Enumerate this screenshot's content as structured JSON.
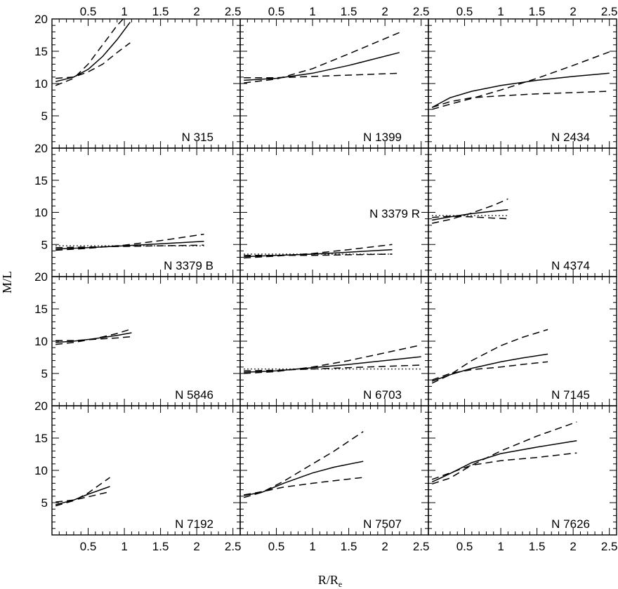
{
  "chart_data": {
    "type": "line",
    "title": "",
    "xlabel": "R/R",
    "xlabel_sub": "e",
    "ylabel": "M/L",
    "xlim": [
      0,
      2.6
    ],
    "ylim": [
      0,
      20
    ],
    "x_ticks": [
      0.5,
      1,
      1.5,
      2,
      2.5
    ],
    "x_tick_labels": [
      "0.5",
      "1",
      "1.5",
      "2",
      "2.5"
    ],
    "y_ticks": [
      5,
      10,
      15,
      20
    ],
    "y_tick_labels": [
      "5",
      "10",
      "15",
      "20"
    ],
    "grid": false,
    "legend": "none",
    "panels": [
      {
        "label": "N 315",
        "series": [
          {
            "style": "solid",
            "x": [
              0.05,
              0.3,
              0.5,
              0.7,
              0.9,
              1.08
            ],
            "y": [
              10.3,
              11.0,
              12.2,
              14.2,
              16.8,
              19.5
            ]
          },
          {
            "style": "dashed",
            "x": [
              0.05,
              0.3,
              0.5,
              0.7,
              0.9,
              1.0
            ],
            "y": [
              9.7,
              10.8,
              13.0,
              16.0,
              19.0,
              20.2
            ]
          },
          {
            "style": "dashed",
            "x": [
              0.05,
              0.3,
              0.5,
              0.7,
              0.9,
              1.08
            ],
            "y": [
              10.8,
              11.0,
              11.8,
              13.0,
              14.8,
              16.3
            ]
          }
        ]
      },
      {
        "label": "N 1399",
        "series": [
          {
            "style": "solid",
            "x": [
              0.05,
              0.5,
              1.0,
              1.5,
              2.2
            ],
            "y": [
              10.5,
              10.8,
              11.6,
              12.8,
              14.8
            ]
          },
          {
            "style": "dashed",
            "x": [
              0.05,
              0.5,
              1.0,
              1.5,
              2.2
            ],
            "y": [
              10.1,
              10.7,
              12.3,
              14.6,
              17.9
            ]
          },
          {
            "style": "dashed",
            "x": [
              0.05,
              0.5,
              1.0,
              1.5,
              2.2
            ],
            "y": [
              10.9,
              10.9,
              11.1,
              11.3,
              11.6
            ]
          }
        ]
      },
      {
        "label": "N 2434",
        "series": [
          {
            "style": "solid",
            "x": [
              0.05,
              0.3,
              0.6,
              1.0,
              1.5,
              2.0,
              2.5
            ],
            "y": [
              6.3,
              7.8,
              8.8,
              9.7,
              10.5,
              11.1,
              11.6
            ]
          },
          {
            "style": "dashed",
            "x": [
              0.05,
              0.3,
              0.6,
              1.0,
              1.5,
              2.0,
              2.5
            ],
            "y": [
              6.0,
              6.8,
              7.7,
              9.0,
              10.8,
              12.8,
              14.9
            ]
          },
          {
            "style": "dashed",
            "x": [
              0.05,
              0.3,
              0.6,
              1.0,
              1.5,
              2.0,
              2.5
            ],
            "y": [
              6.3,
              7.2,
              7.8,
              8.1,
              8.4,
              8.6,
              8.8
            ]
          }
        ]
      },
      {
        "label": "N 3379 B",
        "series": [
          {
            "style": "solid",
            "x": [
              0.05,
              0.5,
              1.0,
              1.5,
              2.1
            ],
            "y": [
              4.3,
              4.5,
              4.8,
              5.1,
              5.5
            ]
          },
          {
            "style": "dashed",
            "x": [
              0.05,
              0.5,
              1.0,
              1.5,
              2.1
            ],
            "y": [
              4.1,
              4.4,
              4.9,
              5.6,
              6.6
            ]
          },
          {
            "style": "dashed",
            "x": [
              0.05,
              0.5,
              1.0,
              1.5,
              2.1
            ],
            "y": [
              4.5,
              4.6,
              4.7,
              4.8,
              4.9
            ]
          },
          {
            "style": "dotted",
            "x": [
              0.05,
              2.1
            ],
            "y": [
              4.8,
              4.8
            ]
          }
        ]
      },
      {
        "label": "N 3379 R",
        "series": [
          {
            "style": "solid",
            "x": [
              0.05,
              0.5,
              1.0,
              1.5,
              2.1
            ],
            "y": [
              3.1,
              3.3,
              3.5,
              3.8,
              4.2
            ]
          },
          {
            "style": "dashed",
            "x": [
              0.05,
              0.5,
              1.0,
              1.5,
              2.1
            ],
            "y": [
              2.9,
              3.2,
              3.6,
              4.2,
              5.0
            ]
          },
          {
            "style": "dashed",
            "x": [
              0.05,
              0.5,
              1.0,
              1.5,
              2.1
            ],
            "y": [
              3.3,
              3.3,
              3.3,
              3.4,
              3.5
            ]
          },
          {
            "style": "dotted",
            "x": [
              0.05,
              2.1
            ],
            "y": [
              3.5,
              3.5
            ]
          }
        ]
      },
      {
        "label": "N 4374",
        "series": [
          {
            "style": "solid",
            "x": [
              0.05,
              0.3,
              0.6,
              0.9,
              1.1
            ],
            "y": [
              8.8,
              9.3,
              9.8,
              10.2,
              10.4
            ]
          },
          {
            "style": "dashed",
            "x": [
              0.05,
              0.3,
              0.6,
              0.9,
              1.1
            ],
            "y": [
              8.3,
              8.9,
              9.9,
              11.1,
              12.1
            ]
          },
          {
            "style": "dashed",
            "x": [
              0.05,
              0.3,
              0.6,
              0.9,
              1.1
            ],
            "y": [
              9.2,
              9.4,
              9.3,
              9.1,
              9.0
            ]
          },
          {
            "style": "dotted",
            "x": [
              0.05,
              1.1
            ],
            "y": [
              9.5,
              9.5
            ]
          }
        ]
      },
      {
        "label": "N 5846",
        "series": [
          {
            "style": "solid",
            "x": [
              0.05,
              0.3,
              0.6,
              0.9,
              1.1
            ],
            "y": [
              9.8,
              10.0,
              10.4,
              10.9,
              11.3
            ]
          },
          {
            "style": "dashed",
            "x": [
              0.05,
              0.3,
              0.6,
              0.9,
              1.1
            ],
            "y": [
              9.5,
              9.8,
              10.4,
              11.2,
              11.9
            ]
          },
          {
            "style": "dashed",
            "x": [
              0.05,
              0.3,
              0.6,
              0.9,
              1.1
            ],
            "y": [
              10.1,
              10.1,
              10.3,
              10.5,
              10.7
            ]
          }
        ]
      },
      {
        "label": "N 6703",
        "series": [
          {
            "style": "solid",
            "x": [
              0.05,
              0.5,
              1.0,
              1.5,
              2.0,
              2.5
            ],
            "y": [
              5.2,
              5.4,
              5.9,
              6.4,
              7.0,
              7.6
            ]
          },
          {
            "style": "dashed",
            "x": [
              0.05,
              0.5,
              1.0,
              1.5,
              2.0,
              2.5
            ],
            "y": [
              5.0,
              5.3,
              6.0,
              7.0,
              8.2,
              9.4
            ]
          },
          {
            "style": "dashed",
            "x": [
              0.05,
              0.5,
              1.0,
              1.5,
              2.0,
              2.5
            ],
            "y": [
              5.4,
              5.5,
              5.7,
              5.9,
              6.1,
              6.3
            ]
          },
          {
            "style": "dotted",
            "x": [
              0.05,
              2.5
            ],
            "y": [
              5.7,
              5.7
            ]
          }
        ]
      },
      {
        "label": "N 7145",
        "series": [
          {
            "style": "solid",
            "x": [
              0.05,
              0.3,
              0.6,
              1.0,
              1.3,
              1.65
            ],
            "y": [
              3.8,
              4.8,
              5.8,
              6.8,
              7.4,
              8.0
            ]
          },
          {
            "style": "dashed",
            "x": [
              0.05,
              0.3,
              0.6,
              1.0,
              1.3,
              1.65
            ],
            "y": [
              3.5,
              4.8,
              7.0,
              9.3,
              10.6,
              11.8
            ]
          },
          {
            "style": "dashed",
            "x": [
              0.05,
              0.3,
              0.6,
              1.0,
              1.3,
              1.65
            ],
            "y": [
              4.0,
              5.0,
              5.6,
              6.0,
              6.4,
              6.8
            ]
          }
        ]
      },
      {
        "label": "N 7192",
        "series": [
          {
            "style": "solid",
            "x": [
              0.05,
              0.3,
              0.5,
              0.8
            ],
            "y": [
              4.7,
              5.4,
              6.3,
              7.5
            ]
          },
          {
            "style": "dashed",
            "x": [
              0.05,
              0.3,
              0.5,
              0.8
            ],
            "y": [
              4.5,
              5.3,
              6.5,
              8.9
            ]
          },
          {
            "style": "dashed",
            "x": [
              0.05,
              0.3,
              0.5,
              0.8
            ],
            "y": [
              5.1,
              5.4,
              5.9,
              6.7
            ]
          }
        ]
      },
      {
        "label": "N 7507",
        "series": [
          {
            "style": "solid",
            "x": [
              0.05,
              0.3,
              0.6,
              1.0,
              1.3,
              1.7
            ],
            "y": [
              6.1,
              6.6,
              8.0,
              9.6,
              10.5,
              11.4
            ]
          },
          {
            "style": "dashed",
            "x": [
              0.05,
              0.3,
              0.6,
              1.0,
              1.3,
              1.7
            ],
            "y": [
              5.8,
              6.6,
              8.3,
              11.0,
              13.0,
              16.0
            ]
          },
          {
            "style": "dashed",
            "x": [
              0.05,
              0.3,
              0.6,
              1.0,
              1.3,
              1.7
            ],
            "y": [
              6.2,
              6.7,
              7.4,
              8.0,
              8.4,
              8.9
            ]
          }
        ]
      },
      {
        "label": "N 7626",
        "series": [
          {
            "style": "solid",
            "x": [
              0.05,
              0.3,
              0.6,
              1.0,
              1.5,
              2.05
            ],
            "y": [
              8.2,
              9.5,
              11.2,
              12.6,
              13.6,
              14.6
            ]
          },
          {
            "style": "dashed",
            "x": [
              0.05,
              0.3,
              0.6,
              1.0,
              1.5,
              2.05
            ],
            "y": [
              7.9,
              8.8,
              10.8,
              13.0,
              15.3,
              17.5
            ]
          },
          {
            "style": "dashed",
            "x": [
              0.05,
              0.3,
              0.6,
              1.0,
              1.5,
              2.05
            ],
            "y": [
              8.6,
              9.6,
              10.8,
              11.5,
              12.0,
              12.7
            ]
          }
        ]
      }
    ]
  }
}
